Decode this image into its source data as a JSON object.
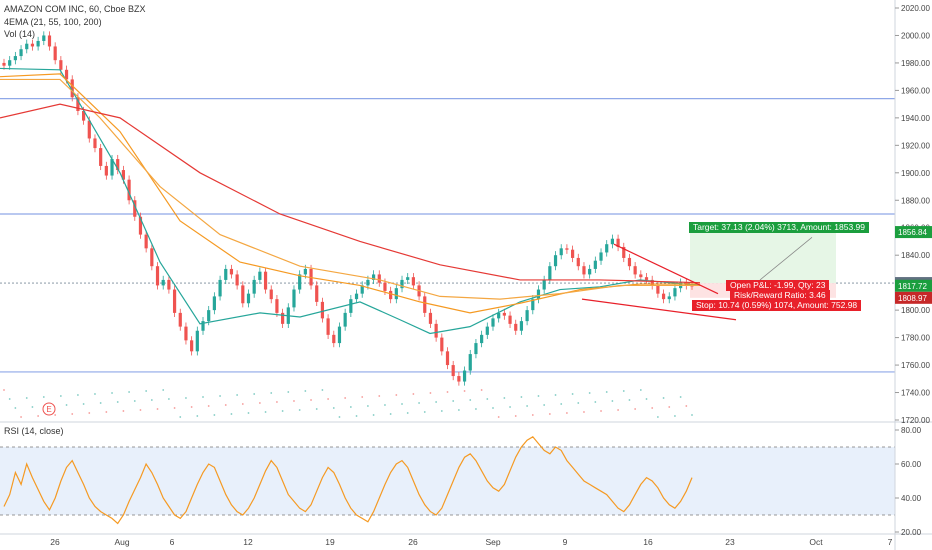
{
  "header": {
    "symbol_line": "AMAZON COM INC, 60, Cboe BZX",
    "ema_line": "4EMA (21, 55, 100, 200)",
    "vol_line": "Vol (14)",
    "rsi_line": "RSI (14, close)"
  },
  "colors": {
    "ema21": "#26a69a",
    "ema55": "#f59a23",
    "ema100": "#f4a742",
    "ema200": "#e53935",
    "up": "#26a69a",
    "down": "#ef5350",
    "hline": "#8fa8e8",
    "target_fill": "#e6f6e6",
    "stop_fill": "#fde3e3",
    "trendline": "#e8202a",
    "rsi_line": "#f59a23",
    "rsi_band": "#e8f0fb"
  },
  "chart_data": [
    {
      "type": "candlestick",
      "title": "AMAZON COM INC, 60, Cboe BZX",
      "ylim": [
        1720,
        2020
      ],
      "y_ticks": [
        1720,
        1740,
        1760,
        1780,
        1800,
        1820,
        1840,
        1860,
        1880,
        1900,
        1920,
        1940,
        1960,
        1980,
        2000,
        2020
      ],
      "x_ticks": [
        "26",
        "Aug",
        "6",
        "12",
        "19",
        "26",
        "Sep",
        "9",
        "16",
        "23",
        "Oct",
        "7"
      ],
      "horizontal_levels": [
        1954,
        1870,
        1819.71,
        1755
      ],
      "price_labels": [
        {
          "value": "1856.84",
          "price": 1856.84,
          "color": "#1b9e3e"
        },
        {
          "value": "1819.71",
          "price": 1819.71,
          "color": "#607080"
        },
        {
          "value": "1817.72",
          "price": 1817.72,
          "color": "#1b9e3e"
        },
        {
          "value": "1808.97",
          "price": 1808.97,
          "color": "#c62828"
        }
      ],
      "position_tool": {
        "target_text": "Target: 37.13 (2.04%) 3713, Amount: 1853.99",
        "open_text": "Open P&L: -1.99, Qty: 23",
        "rr_text": "Risk/Reward Ratio: 3.46",
        "stop_text": "Stop: 10.74 (0.59%) 1074, Amount: 752.98",
        "entry": 1819.71,
        "target": 1856.84,
        "stop": 1808.97
      },
      "marker": "E",
      "series": [
        {
          "name": "EMA 21",
          "points": [
            [
              0,
              1976
            ],
            [
              60,
              1975
            ],
            [
              120,
              1900
            ],
            [
              160,
              1835
            ],
            [
              200,
              1790
            ],
            [
              260,
              1798
            ],
            [
              300,
              1795
            ],
            [
              360,
              1806
            ],
            [
              400,
              1793
            ],
            [
              430,
              1783
            ],
            [
              470,
              1788
            ],
            [
              520,
              1806
            ],
            [
              560,
              1815
            ],
            [
              600,
              1817
            ],
            [
              640,
              1822
            ],
            [
              700,
              1818
            ]
          ]
        },
        {
          "name": "EMA 55",
          "points": [
            [
              0,
              1970
            ],
            [
              60,
              1972
            ],
            [
              120,
              1930
            ],
            [
              180,
              1865
            ],
            [
              240,
              1835
            ],
            [
              300,
              1825
            ],
            [
              360,
              1818
            ],
            [
              420,
              1806
            ],
            [
              470,
              1798
            ],
            [
              520,
              1805
            ],
            [
              580,
              1815
            ],
            [
              640,
              1819
            ],
            [
              700,
              1819
            ]
          ]
        },
        {
          "name": "EMA 100",
          "points": [
            [
              0,
              1968
            ],
            [
              60,
              1968
            ],
            [
              100,
              1940
            ],
            [
              160,
              1890
            ],
            [
              220,
              1855
            ],
            [
              300,
              1832
            ],
            [
              380,
              1822
            ],
            [
              440,
              1810
            ],
            [
              500,
              1808
            ],
            [
              560,
              1812
            ],
            [
              620,
              1818
            ],
            [
              700,
              1818
            ]
          ]
        },
        {
          "name": "EMA 200",
          "points": [
            [
              0,
              1940
            ],
            [
              60,
              1950
            ],
            [
              120,
              1940
            ],
            [
              200,
              1900
            ],
            [
              280,
              1870
            ],
            [
              360,
              1850
            ],
            [
              440,
              1833
            ],
            [
              520,
              1822
            ],
            [
              600,
              1822
            ],
            [
              700,
              1820
            ]
          ]
        }
      ],
      "candles_close": [
        1978,
        1982,
        1985,
        1990,
        1994,
        1992,
        1996,
        2000,
        1992,
        1982,
        1975,
        1968,
        1955,
        1945,
        1938,
        1925,
        1918,
        1905,
        1898,
        1910,
        1902,
        1895,
        1880,
        1868,
        1855,
        1845,
        1832,
        1818,
        1822,
        1815,
        1798,
        1788,
        1778,
        1770,
        1785,
        1792,
        1800,
        1810,
        1822,
        1830,
        1826,
        1818,
        1805,
        1812,
        1822,
        1828,
        1815,
        1808,
        1798,
        1790,
        1802,
        1815,
        1826,
        1830,
        1818,
        1806,
        1794,
        1782,
        1776,
        1788,
        1798,
        1808,
        1812,
        1818,
        1822,
        1826,
        1820,
        1814,
        1808,
        1816,
        1822,
        1824,
        1818,
        1810,
        1798,
        1790,
        1780,
        1770,
        1760,
        1752,
        1748,
        1756,
        1768,
        1776,
        1782,
        1788,
        1794,
        1798,
        1796,
        1790,
        1785,
        1792,
        1800,
        1808,
        1815,
        1822,
        1832,
        1840,
        1845,
        1844,
        1838,
        1832,
        1826,
        1830,
        1836,
        1842,
        1848,
        1852,
        1846,
        1838,
        1832,
        1826,
        1824,
        1822,
        1818,
        1812,
        1808,
        1810,
        1816,
        1820,
        1818,
        1817.72
      ]
    },
    {
      "type": "line",
      "title": "RSI (14, close)",
      "ylim": [
        20,
        80
      ],
      "y_ticks": [
        20,
        40,
        60,
        80
      ],
      "band": [
        30,
        70
      ],
      "values": [
        35,
        42,
        55,
        48,
        60,
        52,
        45,
        38,
        33,
        40,
        50,
        58,
        62,
        55,
        48,
        40,
        35,
        32,
        30,
        28,
        25,
        30,
        38,
        45,
        52,
        60,
        55,
        48,
        40,
        35,
        30,
        28,
        32,
        40,
        48,
        55,
        60,
        58,
        50,
        42,
        36,
        32,
        30,
        34,
        40,
        48,
        56,
        62,
        58,
        50,
        42,
        38,
        34,
        32,
        36,
        44,
        52,
        58,
        55,
        48,
        40,
        34,
        30,
        28,
        26,
        32,
        40,
        48,
        55,
        60,
        62,
        58,
        50,
        42,
        36,
        32,
        30,
        34,
        42,
        50,
        58,
        64,
        66,
        62,
        56,
        50,
        46,
        44,
        48,
        56,
        64,
        70,
        74,
        76,
        72,
        68,
        66,
        70,
        68,
        62,
        58,
        54,
        50,
        48,
        46,
        44,
        42,
        38,
        34,
        32,
        36,
        42,
        48,
        52,
        50,
        46,
        40,
        36,
        34,
        38,
        44,
        52
      ]
    }
  ]
}
